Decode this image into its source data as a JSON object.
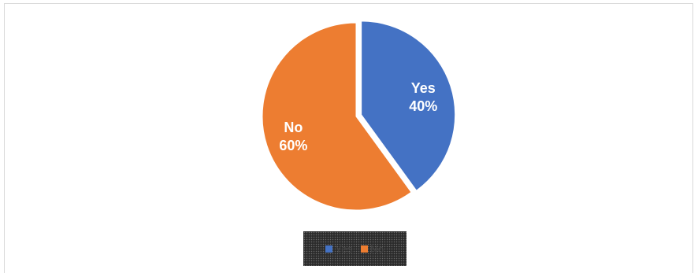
{
  "chart_data": {
    "type": "pie",
    "slices": [
      {
        "name": "Yes",
        "value": 40,
        "label": "40%",
        "color": "#4472c4"
      },
      {
        "name": "No",
        "value": 60,
        "label": "60%",
        "color": "#ed7d31"
      }
    ],
    "legend": {
      "position": "bottom",
      "items": [
        {
          "name": "Yes",
          "color": "#4472c4"
        },
        {
          "name": "No",
          "color": "#ed7d31"
        }
      ]
    }
  }
}
